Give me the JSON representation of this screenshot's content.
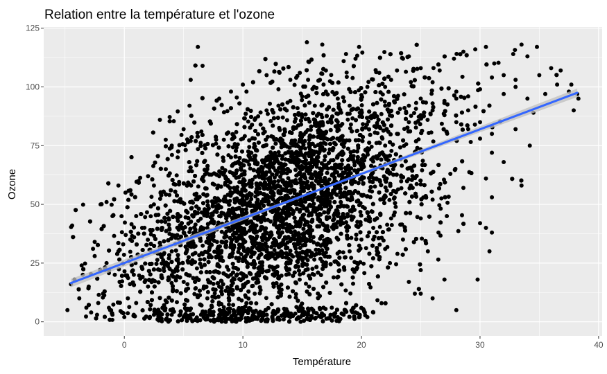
{
  "chart_data": {
    "type": "scatter",
    "title": "Relation entre la température et l'ozone",
    "xlabel": "Température",
    "ylabel": "Ozone",
    "xlim": [
      -6.8,
      40.3
    ],
    "ylim": [
      -6,
      125.5
    ],
    "x_ticks": [
      0,
      10,
      20,
      30,
      40
    ],
    "y_ticks": [
      0,
      25,
      50,
      75,
      100,
      125
    ],
    "grid": true,
    "legend": "none",
    "colors": {
      "panel": "#ebebeb",
      "grid": "#ffffff",
      "points": "#000000",
      "line": "#3366ff",
      "band": "#bfbfbf"
    },
    "point_count_estimate": 8000,
    "series": [
      {
        "points": [
          [
            -4.5,
            16
          ],
          [
            -4.4,
            41
          ],
          [
            -4.8,
            5
          ],
          [
            -3.6,
            24
          ],
          [
            -3.2,
            6
          ],
          [
            -2.8,
            4
          ],
          [
            -2.3,
            3
          ],
          [
            -2,
            50
          ],
          [
            -1.5,
            51
          ],
          [
            -1,
            45
          ],
          [
            -0.5,
            58
          ],
          [
            0.1,
            55
          ],
          [
            -1.8,
            12
          ],
          [
            -0.8,
            20
          ],
          [
            -3.5,
            20
          ],
          [
            -2.5,
            34
          ],
          [
            1,
            45
          ],
          [
            1.2,
            60
          ],
          [
            1.5,
            28
          ],
          [
            0.8,
            20
          ],
          [
            0.3,
            10
          ],
          [
            2,
            62
          ],
          [
            3,
            86
          ],
          [
            4,
            75
          ],
          [
            5,
            82
          ],
          [
            6.2,
            117
          ],
          [
            6.6,
            109
          ],
          [
            5.6,
            103
          ],
          [
            5.5,
            92
          ],
          [
            3.8,
            54
          ],
          [
            2.5,
            58
          ],
          [
            3.2,
            40
          ],
          [
            5.6,
            77
          ],
          [
            6.5,
            81
          ],
          [
            7,
            65
          ],
          [
            8,
            95
          ],
          [
            9,
            98
          ],
          [
            10,
            101
          ],
          [
            10.3,
            98
          ],
          [
            12,
            105
          ],
          [
            13,
            99
          ],
          [
            14,
            103
          ],
          [
            14.8,
            106
          ],
          [
            15.5,
            103
          ],
          [
            16,
            100
          ],
          [
            16.5,
            103
          ],
          [
            16.8,
            101
          ],
          [
            15.4,
            119
          ],
          [
            16.7,
            118
          ],
          [
            18.7,
            114
          ],
          [
            19.5,
            112
          ],
          [
            19.8,
            117
          ],
          [
            17,
            107
          ],
          [
            18.5,
            111
          ],
          [
            20.5,
            100
          ],
          [
            21.5,
            106
          ],
          [
            23,
            107
          ],
          [
            23.5,
            112
          ],
          [
            24,
            113
          ],
          [
            22.5,
            103
          ],
          [
            26.6,
            107
          ],
          [
            27.8,
            112
          ],
          [
            28.6,
            115
          ],
          [
            29.6,
            116
          ],
          [
            30.5,
            117
          ],
          [
            31.2,
            110
          ],
          [
            32.8,
            114
          ],
          [
            33.5,
            118
          ],
          [
            34.8,
            117
          ],
          [
            34,
            113
          ],
          [
            36,
            108
          ],
          [
            36.5,
            101
          ],
          [
            37.7,
            101
          ],
          [
            38.2,
            97
          ],
          [
            37.9,
            90
          ],
          [
            38.3,
            95
          ],
          [
            35.5,
            97
          ],
          [
            33,
            100
          ],
          [
            25,
            108
          ],
          [
            26,
            102
          ],
          [
            22,
            100
          ],
          [
            28,
            95
          ],
          [
            29,
            90
          ],
          [
            30,
            85
          ],
          [
            31,
            80
          ],
          [
            32,
            97
          ],
          [
            30.5,
            40
          ],
          [
            31,
            38
          ],
          [
            30.8,
            30
          ],
          [
            29.8,
            18
          ],
          [
            27,
            18
          ],
          [
            28,
            5
          ],
          [
            26,
            10
          ],
          [
            25,
            12
          ],
          [
            24.5,
            12
          ],
          [
            24,
            17
          ],
          [
            22.4,
            25
          ],
          [
            22,
            31
          ],
          [
            21,
            4
          ],
          [
            20.5,
            2
          ],
          [
            19.5,
            4
          ],
          [
            18.5,
            3
          ],
          [
            18,
            2
          ],
          [
            17.5,
            6
          ],
          [
            16,
            4
          ],
          [
            15,
            3
          ],
          [
            14,
            2
          ],
          [
            13,
            5
          ],
          [
            12,
            1
          ],
          [
            11,
            2
          ],
          [
            10,
            4
          ],
          [
            9,
            1
          ],
          [
            8,
            3
          ],
          [
            7,
            2
          ],
          [
            6.5,
            3
          ],
          [
            6,
            1
          ],
          [
            5.6,
            3
          ],
          [
            5,
            2
          ],
          [
            4,
            3
          ],
          [
            3.5,
            1
          ],
          [
            3,
            4
          ],
          [
            2.5,
            3
          ],
          [
            34.2,
            75
          ],
          [
            34.5,
            89
          ],
          [
            30.5,
            61
          ],
          [
            33.5,
            58
          ],
          [
            31,
            53
          ],
          [
            30,
            42
          ],
          [
            27.5,
            63
          ],
          [
            28.6,
            57
          ],
          [
            27.2,
            45
          ],
          [
            26,
            52
          ],
          [
            26.5,
            38
          ],
          [
            25,
            44
          ],
          [
            25.6,
            30
          ],
          [
            25,
            22
          ],
          [
            23.5,
            35
          ],
          [
            22.5,
            44
          ],
          [
            21,
            40
          ],
          [
            11,
            78
          ],
          [
            12,
            70
          ],
          [
            13,
            60
          ],
          [
            14,
            55
          ],
          [
            15,
            65
          ],
          [
            16,
            58
          ],
          [
            17,
            50
          ],
          [
            9,
            55
          ],
          [
            8,
            45
          ],
          [
            7,
            40
          ],
          [
            10,
            35
          ],
          [
            12,
            30
          ],
          [
            14,
            25
          ],
          [
            9,
            20
          ],
          [
            8,
            15
          ],
          [
            7,
            10
          ],
          [
            11,
            12
          ],
          [
            13,
            15
          ],
          [
            16,
            20
          ],
          [
            18,
            25
          ],
          [
            19,
            30
          ],
          [
            20,
            35
          ],
          [
            18,
            45
          ],
          [
            19,
            55
          ],
          [
            20,
            65
          ],
          [
            21,
            70
          ],
          [
            22,
            75
          ],
          [
            23,
            80
          ],
          [
            24,
            85
          ],
          [
            25,
            88
          ],
          [
            26,
            90
          ],
          [
            27,
            94
          ],
          [
            28,
            98
          ],
          [
            29,
            96
          ],
          [
            30,
            99
          ],
          [
            31,
            104
          ],
          [
            32,
            105
          ],
          [
            33,
            103
          ],
          [
            35,
            105
          ],
          [
            36.8,
            107
          ],
          [
            37.5,
            98
          ],
          [
            4.5,
            70
          ],
          [
            3.5,
            65
          ],
          [
            2.5,
            50
          ],
          [
            1.5,
            40
          ],
          [
            0.5,
            35
          ],
          [
            -0.5,
            30
          ],
          [
            -1.5,
            25
          ],
          [
            -2.5,
            28
          ],
          [
            -3,
            15
          ],
          [
            -3.8,
            10
          ],
          [
            -4.2,
            18
          ],
          [
            -2.2,
            8
          ],
          [
            -1.2,
            5
          ],
          [
            -0.2,
            4
          ],
          [
            0.8,
            3
          ],
          [
            1.8,
            2
          ],
          [
            2.8,
            1
          ],
          [
            -1,
            3
          ],
          [
            0,
            2
          ],
          [
            1,
            8
          ],
          [
            2,
            15
          ],
          [
            3,
            22
          ],
          [
            4,
            30
          ],
          [
            5,
            38
          ],
          [
            6,
            46
          ],
          [
            7,
            54
          ],
          [
            8,
            62
          ],
          [
            9,
            70
          ],
          [
            10,
            78
          ],
          [
            11,
            86
          ],
          [
            12,
            90
          ],
          [
            13,
            92
          ],
          [
            14,
            94
          ],
          [
            15,
            96
          ],
          [
            17,
            98
          ],
          [
            18,
            95
          ],
          [
            19,
            92
          ],
          [
            20,
            90
          ],
          [
            21,
            88
          ],
          [
            22,
            92
          ],
          [
            23,
            95
          ],
          [
            24,
            92
          ],
          [
            25,
            95
          ],
          [
            26,
            93
          ],
          [
            27,
            88
          ],
          [
            28,
            85
          ],
          [
            29,
            82
          ],
          [
            30,
            78
          ],
          [
            31,
            72
          ],
          [
            32,
            68
          ],
          [
            33,
            82
          ],
          [
            34,
            95
          ]
        ]
      }
    ],
    "trend_line": {
      "from": [
        -4.5,
        16.5
      ],
      "to": [
        38.2,
        97.5
      ],
      "band_halfwidth": [
        1.8,
        0.4,
        1.8
      ]
    }
  }
}
